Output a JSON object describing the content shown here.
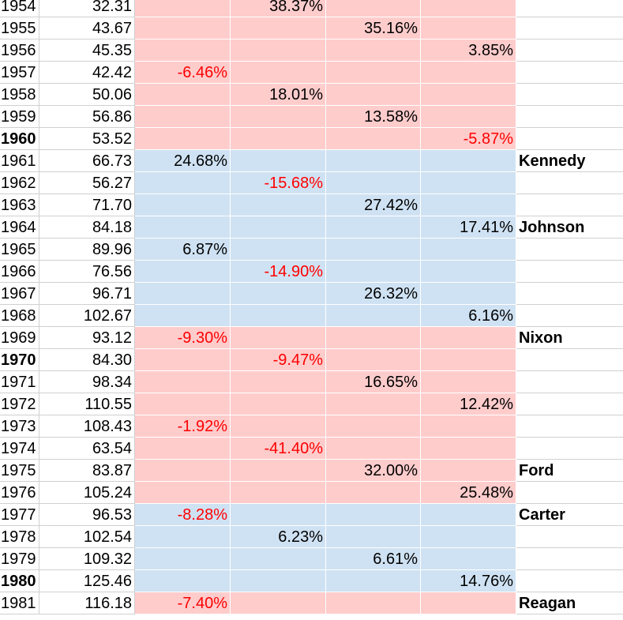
{
  "colors": {
    "republican_fill": "#ffcccc",
    "democrat_fill": "#cfe2f3",
    "negative_text": "#ff0000",
    "positive_text": "#000000",
    "grid_line": "#d0d0d0"
  },
  "rows": [
    {
      "year": "1954",
      "value": "32.31",
      "col": 1,
      "pct": "38.37%",
      "party": "R",
      "president": "",
      "bold_year": false
    },
    {
      "year": "1955",
      "value": "43.67",
      "col": 2,
      "pct": "35.16%",
      "party": "R",
      "president": "",
      "bold_year": false
    },
    {
      "year": "1956",
      "value": "45.35",
      "col": 3,
      "pct": "3.85%",
      "party": "R",
      "president": "",
      "bold_year": false
    },
    {
      "year": "1957",
      "value": "42.42",
      "col": 0,
      "pct": "-6.46%",
      "party": "R",
      "president": "",
      "bold_year": false
    },
    {
      "year": "1958",
      "value": "50.06",
      "col": 1,
      "pct": "18.01%",
      "party": "R",
      "president": "",
      "bold_year": false
    },
    {
      "year": "1959",
      "value": "56.86",
      "col": 2,
      "pct": "13.58%",
      "party": "R",
      "president": "",
      "bold_year": false
    },
    {
      "year": "1960",
      "value": "53.52",
      "col": 3,
      "pct": "-5.87%",
      "party": "R",
      "president": "",
      "bold_year": true
    },
    {
      "year": "1961",
      "value": "66.73",
      "col": 0,
      "pct": "24.68%",
      "party": "D",
      "president": "Kennedy",
      "bold_year": false
    },
    {
      "year": "1962",
      "value": "56.27",
      "col": 1,
      "pct": "-15.68%",
      "party": "D",
      "president": "",
      "bold_year": false
    },
    {
      "year": "1963",
      "value": "71.70",
      "col": 2,
      "pct": "27.42%",
      "party": "D",
      "president": "",
      "bold_year": false
    },
    {
      "year": "1964",
      "value": "84.18",
      "col": 3,
      "pct": "17.41%",
      "party": "D",
      "president": "Johnson",
      "bold_year": false
    },
    {
      "year": "1965",
      "value": "89.96",
      "col": 0,
      "pct": "6.87%",
      "party": "D",
      "president": "",
      "bold_year": false
    },
    {
      "year": "1966",
      "value": "76.56",
      "col": 1,
      "pct": "-14.90%",
      "party": "D",
      "president": "",
      "bold_year": false
    },
    {
      "year": "1967",
      "value": "96.71",
      "col": 2,
      "pct": "26.32%",
      "party": "D",
      "president": "",
      "bold_year": false
    },
    {
      "year": "1968",
      "value": "102.67",
      "col": 3,
      "pct": "6.16%",
      "party": "D",
      "president": "",
      "bold_year": false
    },
    {
      "year": "1969",
      "value": "93.12",
      "col": 0,
      "pct": "-9.30%",
      "party": "R",
      "president": "Nixon",
      "bold_year": false
    },
    {
      "year": "1970",
      "value": "84.30",
      "col": 1,
      "pct": "-9.47%",
      "party": "R",
      "president": "",
      "bold_year": true
    },
    {
      "year": "1971",
      "value": "98.34",
      "col": 2,
      "pct": "16.65%",
      "party": "R",
      "president": "",
      "bold_year": false
    },
    {
      "year": "1972",
      "value": "110.55",
      "col": 3,
      "pct": "12.42%",
      "party": "R",
      "president": "",
      "bold_year": false
    },
    {
      "year": "1973",
      "value": "108.43",
      "col": 0,
      "pct": "-1.92%",
      "party": "R",
      "president": "",
      "bold_year": false
    },
    {
      "year": "1974",
      "value": "63.54",
      "col": 1,
      "pct": "-41.40%",
      "party": "R",
      "president": "",
      "bold_year": false
    },
    {
      "year": "1975",
      "value": "83.87",
      "col": 2,
      "pct": "32.00%",
      "party": "R",
      "president": "Ford",
      "bold_year": false
    },
    {
      "year": "1976",
      "value": "105.24",
      "col": 3,
      "pct": "25.48%",
      "party": "R",
      "president": "",
      "bold_year": false
    },
    {
      "year": "1977",
      "value": "96.53",
      "col": 0,
      "pct": "-8.28%",
      "party": "D",
      "president": "Carter",
      "bold_year": false
    },
    {
      "year": "1978",
      "value": "102.54",
      "col": 1,
      "pct": "6.23%",
      "party": "D",
      "president": "",
      "bold_year": false
    },
    {
      "year": "1979",
      "value": "109.32",
      "col": 2,
      "pct": "6.61%",
      "party": "D",
      "president": "",
      "bold_year": false
    },
    {
      "year": "1980",
      "value": "125.46",
      "col": 3,
      "pct": "14.76%",
      "party": "D",
      "president": "",
      "bold_year": true
    },
    {
      "year": "1981",
      "value": "116.18",
      "col": 0,
      "pct": "-7.40%",
      "party": "R",
      "president": "Reagan",
      "bold_year": false
    }
  ]
}
